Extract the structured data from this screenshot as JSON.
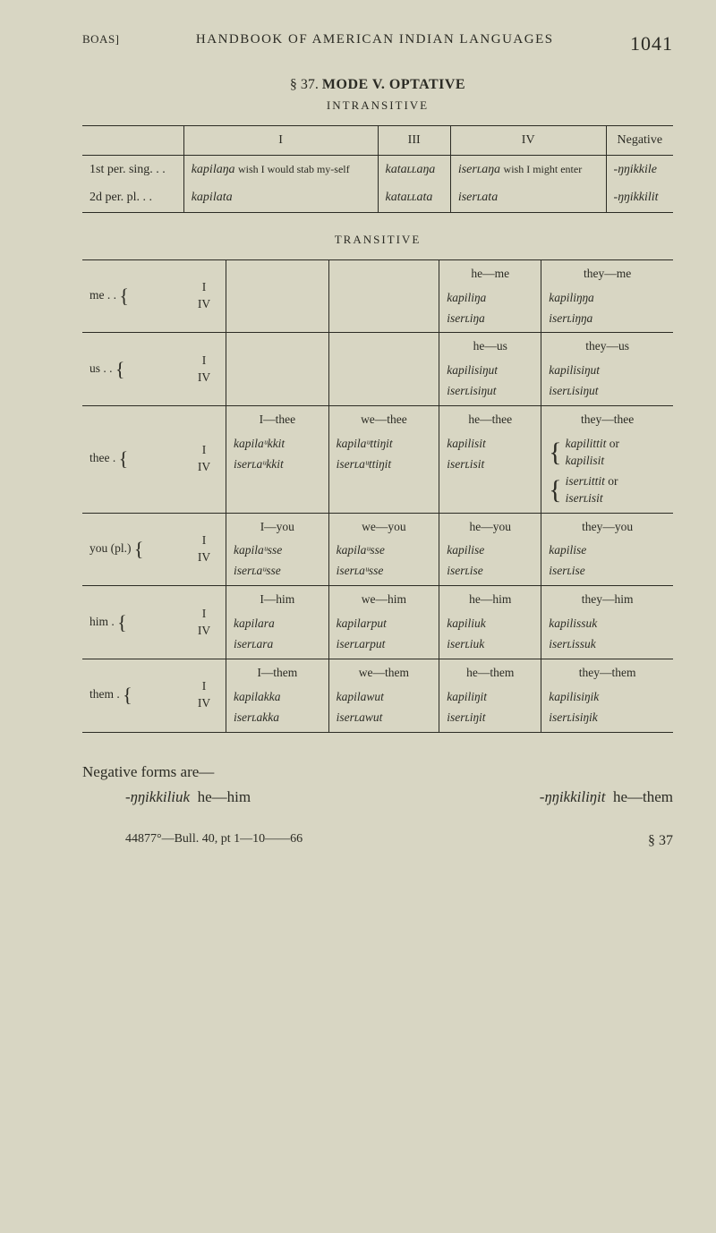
{
  "header": {
    "left": "BOAS]",
    "center": "HANDBOOK OF AMERICAN INDIAN LANGUAGES",
    "page": "1041"
  },
  "titles": {
    "section": "§ 37.",
    "mode": "MODE V.  OPTATIVE",
    "intransitive": "INTRANSITIVE",
    "transitive": "TRANSITIVE"
  },
  "intransitive": {
    "cols": {
      "c1": "I",
      "c2": "III",
      "c3": "IV",
      "c4": "Negative"
    },
    "rows": [
      {
        "label": "1st per. sing. . .",
        "c1_word": "kapilaŋa",
        "c1_gloss": "wish I would stab my-self",
        "c2_word": "kataʟʟaŋa",
        "c3_word": "iserʟaŋa",
        "c3_gloss": "wish I might enter",
        "c4_word": "-ŋŋikkile"
      },
      {
        "label": "2d per. pl. . .",
        "c1_word": "kapilata",
        "c2_word": "kataʟʟata",
        "c3_word": "iserʟata",
        "c4_word": "-ŋŋikkilit"
      }
    ]
  },
  "transitive": {
    "rows": [
      {
        "label": "me . .",
        "sub": [
          "I",
          "IV"
        ],
        "cells": {
          "c4": {
            "head": "he—me",
            "w1": "kapiliŋa",
            "w2": "iserʟiŋa"
          },
          "c5": {
            "head": "they—me",
            "w1": "kapiliŋŋa",
            "w2": "iserʟiŋŋa"
          }
        }
      },
      {
        "label": "us . .",
        "sub": [
          "I",
          "IV"
        ],
        "cells": {
          "c4": {
            "head": "he—us",
            "w1": "kapilisiŋut",
            "w2": "iserʟisiŋut"
          },
          "c5": {
            "head": "they—us",
            "w1": "kapilisiŋut",
            "w2": "iserʟisiŋut"
          }
        }
      },
      {
        "label": "thee .",
        "sub": [
          "I",
          "IV"
        ],
        "cells": {
          "c2": {
            "head": "I—thee",
            "w1": "kapilaᵘkkit",
            "w2": "iserʟaᵘkkit"
          },
          "c3": {
            "head": "we—thee",
            "w1": "kapilaᵘttiŋit",
            "w2": "iserʟaᵘttiŋit"
          },
          "c4": {
            "head": "he—thee",
            "w1": "kapilisit",
            "w2": "iserʟisit"
          },
          "c5": {
            "head": "they—thee",
            "b1a": "kapilittit",
            "b1b": "kapilisit",
            "b2a": "iserʟittit",
            "b2b": "iserʟisit",
            "or": "or"
          }
        }
      },
      {
        "label": "you (pl.)",
        "sub": [
          "I",
          "IV"
        ],
        "cells": {
          "c2": {
            "head": "I—you",
            "w1": "kapilaᵘsse",
            "w2": "iserʟaᵘsse"
          },
          "c3": {
            "head": "we—you",
            "w1": "kapilaᵘsse",
            "w2": "iserʟaᵘsse"
          },
          "c4": {
            "head": "he—you",
            "w1": "kapilise",
            "w2": "iserʟise"
          },
          "c5": {
            "head": "they—you",
            "w1": "kapilise",
            "w2": "iserʟise"
          }
        }
      },
      {
        "label": "him .",
        "sub": [
          "I",
          "IV"
        ],
        "cells": {
          "c2": {
            "head": "I—him",
            "w1": "kapilara",
            "w2": "iserʟara"
          },
          "c3": {
            "head": "we—him",
            "w1": "kapilarput",
            "w2": "iserʟarput"
          },
          "c4": {
            "head": "he—him",
            "w1": "kapiliuk",
            "w2": "iserʟiuk"
          },
          "c5": {
            "head": "they—him",
            "w1": "kapilissuk",
            "w2": "iserʟissuk"
          }
        }
      },
      {
        "label": "them .",
        "sub": [
          "I",
          "IV"
        ],
        "cells": {
          "c2": {
            "head": "I—them",
            "w1": "kapilakka",
            "w2": "iserʟakka"
          },
          "c3": {
            "head": "we—them",
            "w1": "kapilawut",
            "w2": "iserʟawut"
          },
          "c4": {
            "head": "he—them",
            "w1": "kapiliŋit",
            "w2": "iserʟiŋit"
          },
          "c5": {
            "head": "they—them",
            "w1": "kapilisiŋik",
            "w2": "iserʟisiŋik"
          }
        }
      }
    ]
  },
  "negative": {
    "lead": "Negative forms are—",
    "l1_word": "-ŋŋikkiliuk",
    "l1_gloss": "he—him",
    "r1_word": "-ŋŋikkiliŋit",
    "r1_gloss": "he—them"
  },
  "footer": {
    "line": "44877°—Bull. 40, pt 1—10——66",
    "sec": "§ 37"
  }
}
